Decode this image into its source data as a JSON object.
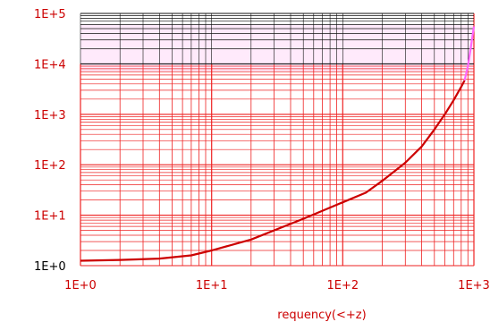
{
  "chart_data": {
    "type": "line",
    "x_scale": "log",
    "y_scale": "log",
    "xlim": [
      1,
      1000
    ],
    "ylim": [
      1,
      100000
    ],
    "x_ticks": [
      "1E+0",
      "1E+1",
      "1E+2",
      "1E+3"
    ],
    "y_ticks": [
      "1E+0",
      "1E+1",
      "1E+2",
      "1E+3",
      "1E+4",
      "1E+5"
    ],
    "xlabel": "requency(<+z)",
    "ylabel": "",
    "grid": true,
    "series": [
      {
        "color": "#cc0000",
        "x": [
          1,
          2,
          4,
          7,
          10,
          20,
          50,
          100,
          150,
          200,
          300,
          400,
          500,
          600,
          700,
          800,
          850
        ],
        "y": [
          1.25,
          1.3,
          1.38,
          1.6,
          2.0,
          3.3,
          8.5,
          18,
          28,
          48,
          110,
          230,
          500,
          1000,
          1900,
          3500,
          4700
        ]
      },
      {
        "color": "#ff66ff",
        "x": [
          850,
          900,
          950,
          1000
        ],
        "y": [
          4700,
          9000,
          22000,
          55000
        ]
      }
    ]
  },
  "colors": {
    "grid": "#ee2222",
    "top_band_grid": "#111111",
    "magenta_band": "#ff55dd",
    "tick_text": "#cc0000",
    "curve": "#cc0000"
  }
}
